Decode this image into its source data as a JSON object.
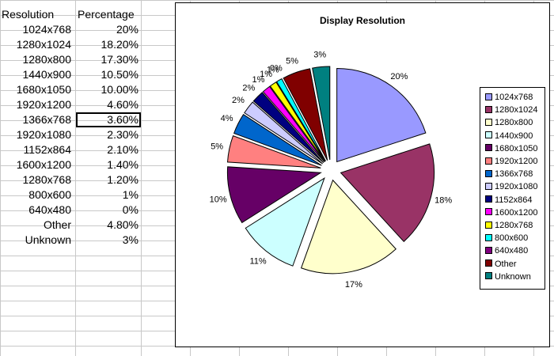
{
  "sheet": {
    "headers": [
      "Resolution",
      "Percentage"
    ],
    "rows": [
      [
        "1024x768",
        "20%"
      ],
      [
        "1280x1024",
        "18.20%"
      ],
      [
        "1280x800",
        "17.30%"
      ],
      [
        "1440x900",
        "10.50%"
      ],
      [
        "1680x1050",
        "10.00%"
      ],
      [
        "1920x1200",
        "4.60%"
      ],
      [
        "1366x768",
        "3.60%"
      ],
      [
        "1920x1080",
        "2.30%"
      ],
      [
        "1152x864",
        "2.10%"
      ],
      [
        "1600x1200",
        "1.40%"
      ],
      [
        "1280x768",
        "1.20%"
      ],
      [
        "800x600",
        "1%"
      ],
      [
        "640x480",
        "0%"
      ],
      [
        "Other",
        "4.80%"
      ],
      [
        "Unknown",
        "3%"
      ]
    ],
    "selected_row": 6
  },
  "chart_data": {
    "type": "pie",
    "title": "Display Resolution",
    "labels": [
      "1024x768",
      "1280x1024",
      "1280x800",
      "1440x900",
      "1680x1050",
      "1920x1200",
      "1366x768",
      "1920x1080",
      "1152x864",
      "1600x1200",
      "1280x768",
      "800x600",
      "640x480",
      "Other",
      "Unknown"
    ],
    "values": [
      20,
      18.2,
      17.3,
      10.5,
      10.0,
      4.6,
      3.6,
      2.3,
      2.1,
      1.4,
      1.2,
      1,
      0,
      4.8,
      3
    ],
    "data_labels": [
      "20%",
      "18%",
      "17%",
      "11%",
      "10%",
      "5%",
      "4%",
      "2%",
      "2%",
      "1%",
      "1%",
      "1%",
      "0%",
      "5%",
      "3%"
    ],
    "colors": [
      "#9999ff",
      "#993366",
      "#ffffcc",
      "#ccffff",
      "#660066",
      "#ff8080",
      "#0066cc",
      "#ccccff",
      "#000080",
      "#ff00ff",
      "#ffff00",
      "#00ffff",
      "#800080",
      "#800000",
      "#008080"
    ],
    "exploded": true,
    "legend_position": "right"
  }
}
